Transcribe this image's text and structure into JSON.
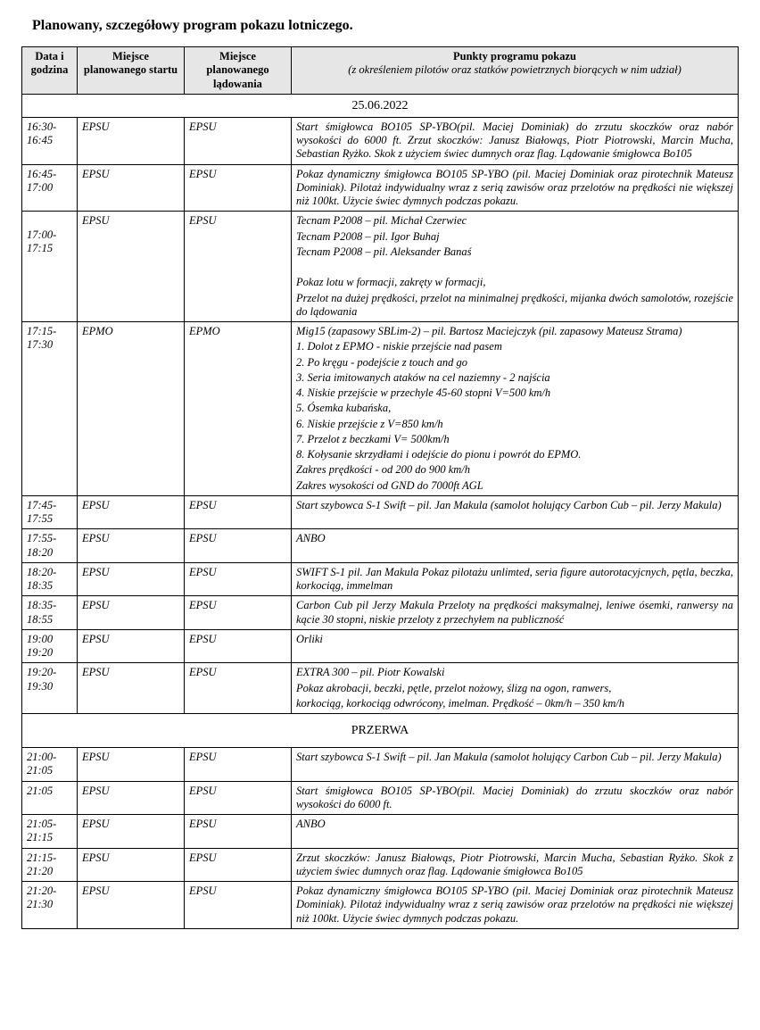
{
  "title": "Planowany, szczegółowy program pokazu lotniczego.",
  "headers": {
    "time": "Data i godzina",
    "start": "Miejsce planowanego startu",
    "land": "Miejsce planowanego lądowania",
    "desc_main": "Punkty programu pokazu",
    "desc_sub": "(z określeniem pilotów oraz statków powietrznych biorących w nim udział)"
  },
  "date_header": "25.06.2022",
  "break_label": "PRZERWA",
  "rows": [
    {
      "time": "16:30-16:45",
      "start": "EPSU",
      "land": "EPSU",
      "desc": "<p>Start śmigłowca BO105 SP-YBO(pil. Maciej Dominiak) do zrzutu skoczków oraz nabór wysokości do 6000 ft. Zrzut skoczków: Janusz Białowąs, Piotr Piotrowski, Marcin Mucha, Sebastian Ryżko. <span class='justify-wide'>Skok z użyciem świec dumnych oraz flag.</span> Lądowanie śmigłowca Bo105</p>"
    },
    {
      "time": "16:45-17:00",
      "start": "EPSU",
      "land": "EPSU",
      "desc": "<p>Pokaz dynamiczny śmigłowca BO105 SP-YBO (pil. Maciej Dominiak oraz pirotechnik Mateusz Dominiak). Pilotaż indywidualny wraz z serią zawisów oraz przelotów na prędkości nie większej niż 100kt. Użycie świec dymnych podczas pokazu.</p>",
      "pad": true
    },
    {
      "time": "17:00-17:15",
      "start": "EPSU",
      "land": "EPSU",
      "desc": "<p>Tecnam P2008 – pil. Michał Czerwiec</p><p>Tecnam P2008 – pil. Igor Buhaj</p><p>Tecnam P2008 – pil. Aleksander Banaś</p><p>&nbsp;</p><p>Pokaz lotu w formacji, zakręty w formacji,</p><p>Przelot na dużej prędkości, przelot na minimalnej prędkości, mijanka dwóch samolotów, rozejście do lądowania</p>",
      "time_offset": true,
      "pad": true
    },
    {
      "time": "17:15-17:30",
      "start": "EPMO",
      "land": "EPMO",
      "desc": "<p>Mig15 (zapasowy SBLim-2) – pil. Bartosz Maciejczyk (pil. zapasowy Mateusz Strama)</p><p>1. Dolot z EPMO - niskie przejście nad pasem</p><p>2. Po kręgu - podejście z touch and go</p><p>3. Seria imitowanych ataków na cel naziemny - 2 najścia</p><p>4. Niskie przejście w przechyle 45-60 stopni V=500 km/h</p><p>5. Ósemka kubańska,</p><p>6. Niskie przejście z V=850 km/h</p><p>7. Przelot z beczkami V= 500km/h</p><p>8. Kołysanie skrzydłami i odejście do pionu i powrót do EPMO.</p><p>Zakres prędkości - od 200 do 900 km/h</p><p>Zakres wysokości od GND do 7000ft AGL</p>"
    },
    {
      "time": "17:45-17:55",
      "start": "EPSU",
      "land": "EPSU",
      "desc": "<p>Start szybowca S-1 Swift – pil. Jan Makula (samolot holujący Carbon Cub – pil. Jerzy Makula)</p>"
    },
    {
      "time": "17:55-18:20",
      "start": "EPSU",
      "land": "EPSU",
      "desc": "<p>ANBO</p>"
    },
    {
      "time": "18:20-18:35",
      "start": "EPSU",
      "land": "EPSU",
      "desc": "<p>SWIFT S-1 pil. Jan Makula Pokaz pilotażu unlimted, seria figure autorotacyjcnych, pętla, beczka, korkociąg, immelman</p>"
    },
    {
      "time": "18:35-18:55",
      "start": "EPSU",
      "land": "EPSU",
      "desc": "<p>Carbon Cub pil Jerzy Makula Przeloty na prędkości maksymalnej, leniwe ósemki, ranwersy na kącie 30 stopni, niskie przeloty z przechyłem na publiczność</p>"
    },
    {
      "time": "19:00 19:20",
      "start": "EPSU",
      "land": "EPSU",
      "desc": "<p>Orliki</p>"
    },
    {
      "time": "19:20-19:30",
      "start": "EPSU",
      "land": "EPSU",
      "desc": "<p>EXTRA 300 – pil. Piotr Kowalski</p><p>Pokaz akrobacji, beczki, pętle, przelot nożowy, ślizg na ogon, ranwers,</p><p>korkociąg, korkociąg odwrócony, imelman. Prędkość – 0km/h – 350 km/h</p>"
    }
  ],
  "rows2": [
    {
      "time": "21:00-21:05",
      "start": "EPSU",
      "land": "EPSU",
      "desc": "<p>Start szybowca S-1 Swift – pil. Jan Makula (samolot holujący Carbon Cub – pil. Jerzy Makula)</p>"
    },
    {
      "time": "21:05",
      "start": "EPSU",
      "land": "EPSU",
      "desc": "<p>Start śmigłowca BO105 SP-YBO(pil. Maciej Dominiak) do zrzutu skoczków oraz nabór wysokości do 6000 ft.</p>"
    },
    {
      "time": "21:05-21:15",
      "start": "EPSU",
      "land": "EPSU",
      "desc": "<p>ANBO</p>"
    },
    {
      "time": "21:15-21:20",
      "start": "EPSU",
      "land": "EPSU",
      "desc": "<p>Zrzut skoczków: Janusz Białowąs, Piotr Piotrowski, Marcin Mucha, Sebastian Ryżko. <span class='justify-wide'>Skok z użyciem świec dumnych oraz flag.</span> Lądowanie śmigłowca Bo105</p>"
    },
    {
      "time": "21:20-21:30",
      "start": "EPSU",
      "land": "EPSU",
      "desc": "<p>Pokaz dynamiczny śmigłowca BO105 SP-YBO (pil. Maciej Dominiak oraz pirotechnik Mateusz Dominiak). Pilotaż indywidualny wraz z serią zawisów oraz przelotów na prędkości nie większej niż 100kt. Użycie świec dymnych podczas pokazu.</p>"
    }
  ]
}
